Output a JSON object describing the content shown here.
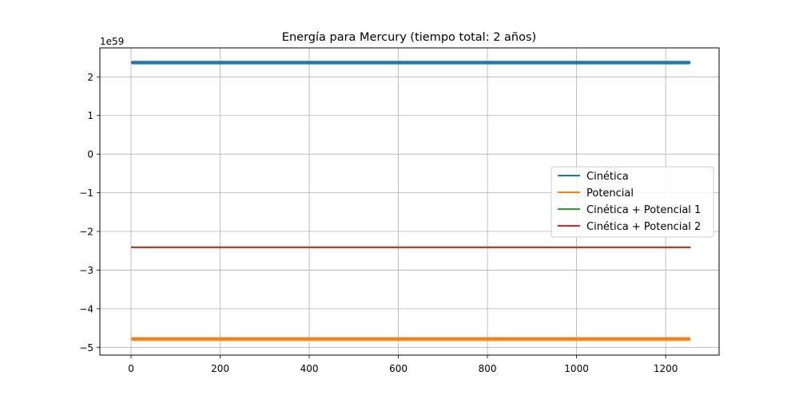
{
  "chart_data": {
    "type": "line",
    "title": "Energía para Mercury (tiempo total: 2 años)",
    "offset_text": "1e59",
    "scale": 1e+59,
    "xlabel": "",
    "ylabel": "",
    "xlim": [
      -70,
      1320
    ],
    "ylim": [
      -5.2,
      2.75
    ],
    "xticks": [
      0,
      200,
      400,
      600,
      800,
      1000,
      1200
    ],
    "xtick_labels": [
      "0",
      "200",
      "400",
      "600",
      "800",
      "1000",
      "1200"
    ],
    "yticks": [
      2,
      1,
      0,
      -1,
      -2,
      -3,
      -4,
      -5
    ],
    "ytick_labels": [
      "2",
      "1",
      "0",
      "−1",
      "−2",
      "−3",
      "−4",
      "−5"
    ],
    "grid": true,
    "legend_position": "center-right",
    "series": [
      {
        "name": "Cinética",
        "color": "#1f77b4",
        "x_start": 0,
        "x_end": 1256,
        "value": 2.37,
        "band": 0.045
      },
      {
        "name": "Potencial",
        "color": "#ff7f0e",
        "x_start": 0,
        "x_end": 1256,
        "value": -4.78,
        "band": 0.045
      },
      {
        "name": "Cinética + Potencial 1",
        "color": "#2ca02c",
        "x_start": 0,
        "x_end": 1256,
        "value": -2.41,
        "band": 0.004
      },
      {
        "name": "Cinética + Potencial 2",
        "color": "#d62728",
        "x_start": 0,
        "x_end": 1256,
        "value": -2.41,
        "band": 0.004
      }
    ]
  }
}
